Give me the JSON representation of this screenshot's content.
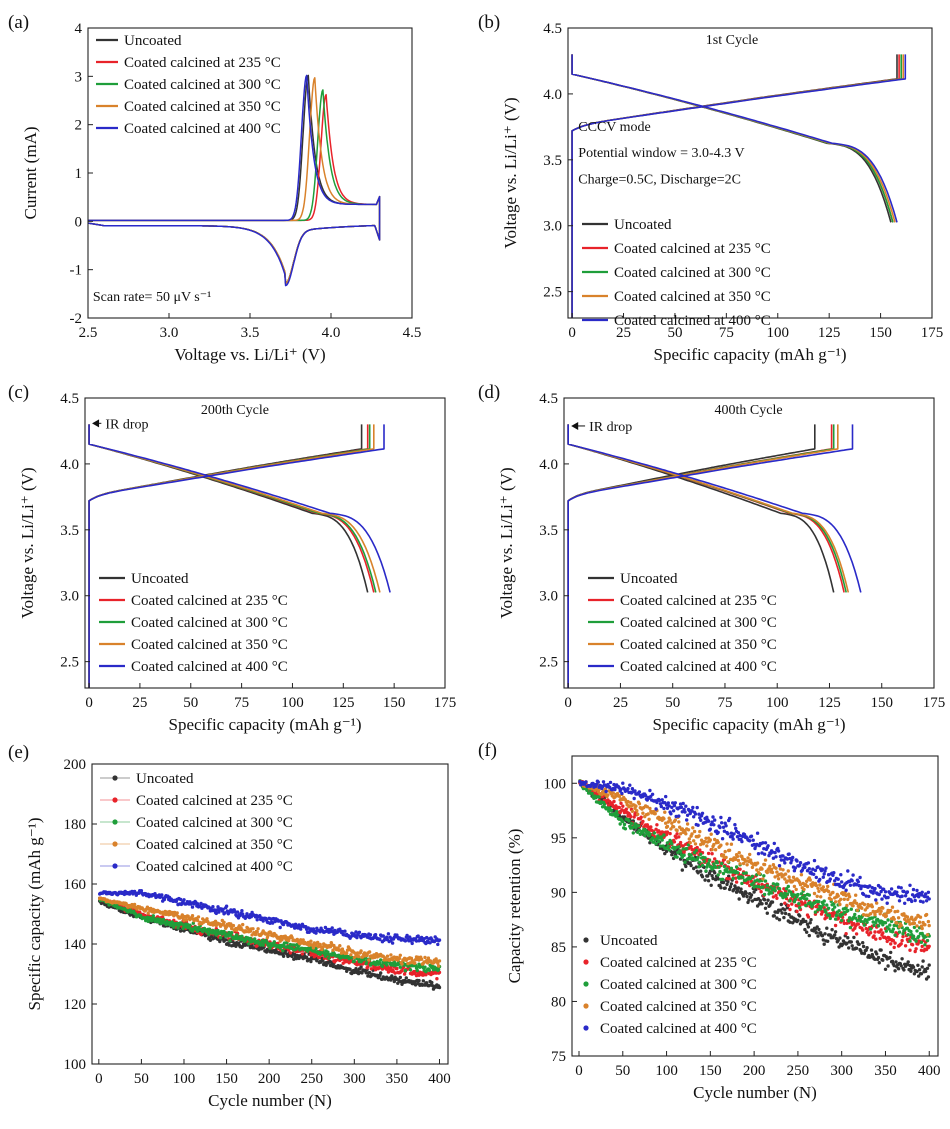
{
  "colors": {
    "uncoated": "#333333",
    "c235": "#e8232a",
    "c300": "#1f9e3a",
    "c350": "#d9822b",
    "c400": "#2a2ac8"
  },
  "series_names": [
    "Uncoated",
    "Coated calcined at 235 °C",
    "Coated calcined at 300 °C",
    "Coated calcined at 350 °C",
    "Coated calcined at 400 °C"
  ],
  "chart_data": [
    {
      "id": "a",
      "panel_label": "(a)",
      "type": "line",
      "xlabel": "Voltage vs. Li/Li⁺ (V)",
      "ylabel": "Current (mA)",
      "xlim": [
        2.5,
        4.5
      ],
      "ylim": [
        -2,
        4
      ],
      "xticks": [
        2.5,
        3.0,
        3.5,
        4.0,
        4.5
      ],
      "xtick_labels": [
        "2.5",
        "3.0",
        "3.5",
        "4.0",
        "4.5"
      ],
      "yticks": [
        -2,
        -1,
        0,
        1,
        2,
        3,
        4
      ],
      "ytick_labels": [
        "-2",
        "-1",
        "0",
        "1",
        "2",
        "3",
        "4"
      ],
      "legend_position": "top-left",
      "annotations": [
        {
          "text": "Scan rate= 50 μV s⁻¹",
          "x": 2.53,
          "y": -1.65
        }
      ],
      "series": [
        {
          "name": "Uncoated",
          "color_key": "uncoated",
          "peak_ox": [
            3.86,
            3.0
          ],
          "peak_red": [
            3.72,
            -1.05
          ]
        },
        {
          "name": "Coated calcined at 235 °C",
          "color_key": "c235",
          "peak_ox": [
            3.97,
            2.6
          ],
          "peak_red": [
            3.72,
            -1.05
          ]
        },
        {
          "name": "Coated calcined at 300 °C",
          "color_key": "c300",
          "peak_ox": [
            3.95,
            2.7
          ],
          "peak_red": [
            3.72,
            -1.05
          ]
        },
        {
          "name": "Coated calcined at 350 °C",
          "color_key": "c350",
          "peak_ox": [
            3.9,
            2.95
          ],
          "peak_red": [
            3.72,
            -1.05
          ]
        },
        {
          "name": "Coated calcined at 400 °C",
          "color_key": "c400",
          "peak_ox": [
            3.85,
            3.0
          ],
          "peak_red": [
            3.72,
            -1.1
          ]
        }
      ]
    },
    {
      "id": "b",
      "panel_label": "(b)",
      "type": "line",
      "xlabel": "Specific capacity (mAh g⁻¹)",
      "ylabel": "Voltage vs. Li/Li⁺ (V)",
      "xlim": [
        -2,
        175
      ],
      "ylim": [
        2.3,
        4.5
      ],
      "xticks": [
        0,
        25,
        50,
        75,
        100,
        125,
        150,
        175
      ],
      "xtick_labels": [
        "0",
        "25",
        "50",
        "75",
        "100",
        "125",
        "150",
        "175"
      ],
      "yticks": [
        2.5,
        3.0,
        3.5,
        4.0,
        4.5
      ],
      "ytick_labels": [
        "2.5",
        "3.0",
        "3.5",
        "4.0",
        "4.5"
      ],
      "legend_position": "bottom-center",
      "annotations": [
        {
          "text": "1st Cycle",
          "x": 65,
          "y": 4.38
        },
        {
          "text": "CCCV mode",
          "x": 3,
          "y": 3.72
        },
        {
          "text": "Potential window = 3.0-4.3 V",
          "x": 3,
          "y": 3.52
        },
        {
          "text": "Charge=0.5C, Discharge=2C",
          "x": 3,
          "y": 3.32
        }
      ],
      "series": [
        {
          "name": "Uncoated",
          "color_key": "uncoated",
          "charge_cap": 158,
          "discharge_cap": 155
        },
        {
          "name": "Coated calcined at 235 °C",
          "color_key": "c235",
          "charge_cap": 159,
          "discharge_cap": 156
        },
        {
          "name": "Coated calcined at 300 °C",
          "color_key": "c300",
          "charge_cap": 160,
          "discharge_cap": 156
        },
        {
          "name": "Coated calcined at 350 °C",
          "color_key": "c350",
          "charge_cap": 161,
          "discharge_cap": 157
        },
        {
          "name": "Coated calcined at 400 °C",
          "color_key": "c400",
          "charge_cap": 162,
          "discharge_cap": 158
        }
      ]
    },
    {
      "id": "c",
      "panel_label": "(c)",
      "type": "line",
      "xlabel": "Specific capacity (mAh g⁻¹)",
      "ylabel": "Voltage vs. Li/Li⁺ (V)",
      "xlim": [
        -2,
        175
      ],
      "ylim": [
        2.3,
        4.5
      ],
      "xticks": [
        0,
        25,
        50,
        75,
        100,
        125,
        150,
        175
      ],
      "xtick_labels": [
        "0",
        "25",
        "50",
        "75",
        "100",
        "125",
        "150",
        "175"
      ],
      "yticks": [
        2.5,
        3.0,
        3.5,
        4.0,
        4.5
      ],
      "ytick_labels": [
        "2.5",
        "3.0",
        "3.5",
        "4.0",
        "4.5"
      ],
      "legend_position": "bottom-left",
      "annotations": [
        {
          "text": "200th Cycle",
          "x": 55,
          "y": 4.38
        },
        {
          "text": "IR drop",
          "x": 8,
          "y": 4.27
        }
      ],
      "series": [
        {
          "name": "Uncoated",
          "color_key": "uncoated",
          "charge_cap": 134,
          "discharge_cap": 137
        },
        {
          "name": "Coated calcined at 235 °C",
          "color_key": "c235",
          "charge_cap": 137,
          "discharge_cap": 140
        },
        {
          "name": "Coated calcined at 300 °C",
          "color_key": "c300",
          "charge_cap": 138,
          "discharge_cap": 141
        },
        {
          "name": "Coated calcined at 350 °C",
          "color_key": "c350",
          "charge_cap": 140,
          "discharge_cap": 143
        },
        {
          "name": "Coated calcined at 400 °C",
          "color_key": "c400",
          "charge_cap": 145,
          "discharge_cap": 148
        }
      ]
    },
    {
      "id": "d",
      "panel_label": "(d)",
      "type": "line",
      "xlabel": "Specific capacity (mAh g⁻¹)",
      "ylabel": "Voltage vs. Li/Li⁺ (V)",
      "xlim": [
        -2,
        175
      ],
      "ylim": [
        2.3,
        4.5
      ],
      "xticks": [
        0,
        25,
        50,
        75,
        100,
        125,
        150,
        175
      ],
      "xtick_labels": [
        "0",
        "25",
        "50",
        "75",
        "100",
        "125",
        "150",
        "175"
      ],
      "yticks": [
        2.5,
        3.0,
        3.5,
        4.0,
        4.5
      ],
      "ytick_labels": [
        "2.5",
        "3.0",
        "3.5",
        "4.0",
        "4.5"
      ],
      "legend_position": "bottom-left",
      "annotations": [
        {
          "text": "400th Cycle",
          "x": 70,
          "y": 4.38
        },
        {
          "text": "IR drop",
          "x": 10,
          "y": 4.25
        }
      ],
      "series": [
        {
          "name": "Uncoated",
          "color_key": "uncoated",
          "charge_cap": 118,
          "discharge_cap": 127
        },
        {
          "name": "Coated calcined at 235 °C",
          "color_key": "c235",
          "charge_cap": 126,
          "discharge_cap": 132
        },
        {
          "name": "Coated calcined at 300 °C",
          "color_key": "c300",
          "charge_cap": 127,
          "discharge_cap": 133
        },
        {
          "name": "Coated calcined at 350 °C",
          "color_key": "c350",
          "charge_cap": 129,
          "discharge_cap": 134
        },
        {
          "name": "Coated calcined at 400 °C",
          "color_key": "c400",
          "charge_cap": 136,
          "discharge_cap": 140
        }
      ]
    },
    {
      "id": "e",
      "panel_label": "(e)",
      "type": "scatter",
      "xlabel": "Cycle number (N)",
      "ylabel": "Specific capacity (mAh g⁻¹)",
      "xlim": [
        -8,
        410
      ],
      "ylim": [
        100,
        200
      ],
      "xticks": [
        0,
        50,
        100,
        150,
        200,
        250,
        300,
        350,
        400
      ],
      "xtick_labels": [
        "0",
        "50",
        "100",
        "150",
        "200",
        "250",
        "300",
        "350",
        "400"
      ],
      "yticks": [
        100,
        120,
        140,
        160,
        180,
        200
      ],
      "ytick_labels": [
        "100",
        "120",
        "140",
        "160",
        "180",
        "200"
      ],
      "legend_position": "top-left",
      "series": [
        {
          "name": "Uncoated",
          "color_key": "uncoated",
          "x": [
            1,
            50,
            100,
            150,
            200,
            250,
            300,
            350,
            400
          ],
          "y": [
            154,
            149,
            145,
            141,
            138,
            135,
            131,
            128,
            126
          ]
        },
        {
          "name": "Coated calcined at 235 °C",
          "color_key": "c235",
          "x": [
            1,
            50,
            100,
            150,
            200,
            250,
            300,
            350,
            400
          ],
          "y": [
            155,
            150,
            146,
            143,
            140,
            137,
            134,
            131,
            130
          ]
        },
        {
          "name": "Coated calcined at 300 °C",
          "color_key": "c300",
          "x": [
            1,
            50,
            100,
            150,
            200,
            250,
            300,
            350,
            400
          ],
          "y": [
            155,
            149,
            146,
            143,
            140,
            138,
            135,
            133,
            132
          ]
        },
        {
          "name": "Coated calcined at 350 °C",
          "color_key": "c350",
          "x": [
            1,
            50,
            100,
            150,
            200,
            250,
            300,
            350,
            400
          ],
          "y": [
            155,
            152,
            149,
            146,
            143,
            140,
            137,
            135,
            134
          ]
        },
        {
          "name": "Coated calcined at 400 °C",
          "color_key": "c400",
          "x": [
            1,
            50,
            100,
            150,
            200,
            250,
            300,
            350,
            400
          ],
          "y": [
            157,
            157,
            154,
            151,
            148,
            145,
            143,
            142,
            141
          ]
        }
      ]
    },
    {
      "id": "f",
      "panel_label": "(f)",
      "type": "scatter",
      "xlabel": "Cycle number (N)",
      "ylabel": "Capacity retention (%)",
      "xlim": [
        -8,
        410
      ],
      "ylim": [
        75,
        102.5
      ],
      "xticks": [
        0,
        50,
        100,
        150,
        200,
        250,
        300,
        350,
        400
      ],
      "xtick_labels": [
        "0",
        "50",
        "100",
        "150",
        "200",
        "250",
        "300",
        "350",
        "400"
      ],
      "yticks": [
        75,
        80,
        85,
        90,
        95,
        100
      ],
      "ytick_labels": [
        "75",
        "80",
        "85",
        "90",
        "95",
        "100"
      ],
      "legend_position": "bottom-left",
      "series": [
        {
          "name": "Uncoated",
          "color_key": "uncoated",
          "x": [
            1,
            50,
            100,
            150,
            200,
            250,
            300,
            350,
            400
          ],
          "y": [
            100,
            97,
            94,
            91.5,
            89.5,
            87.5,
            85.5,
            84,
            82.5
          ]
        },
        {
          "name": "Coated calcined at 235 °C",
          "color_key": "c235",
          "x": [
            1,
            50,
            100,
            150,
            200,
            250,
            300,
            350,
            400
          ],
          "y": [
            100,
            97.5,
            95,
            93,
            91,
            89,
            87.5,
            86,
            85
          ]
        },
        {
          "name": "Coated calcined at 300 °C",
          "color_key": "c300",
          "x": [
            1,
            50,
            100,
            150,
            200,
            250,
            300,
            350,
            400
          ],
          "y": [
            100,
            96.5,
            94.5,
            92.5,
            91,
            89.5,
            88,
            87,
            86
          ]
        },
        {
          "name": "Coated calcined at 350 °C",
          "color_key": "c350",
          "x": [
            1,
            50,
            100,
            150,
            200,
            250,
            300,
            350,
            400
          ],
          "y": [
            100,
            98.5,
            96.5,
            94.5,
            92.5,
            91,
            89.5,
            88,
            87
          ]
        },
        {
          "name": "Coated calcined at 400 °C",
          "color_key": "c400",
          "x": [
            1,
            50,
            100,
            150,
            200,
            250,
            300,
            350,
            400
          ],
          "y": [
            100,
            99.5,
            98,
            96.5,
            94.5,
            92.5,
            91,
            90,
            89.5
          ]
        }
      ]
    }
  ]
}
